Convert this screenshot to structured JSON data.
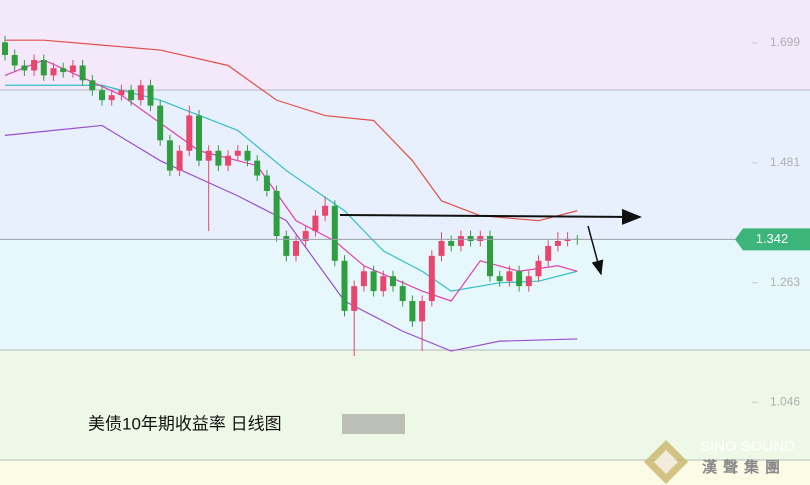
{
  "chart_data": {
    "type": "candlestick",
    "title": "美债10年期收益率  日线图",
    "watermark": {
      "en": "SINO SOUND",
      "zh": "漢聲集團"
    },
    "ylim": [
      0.941,
      1.777
    ],
    "yticks": [
      1.699,
      1.481,
      1.263,
      1.046
    ],
    "last_price": 1.342,
    "last_price_color": "#3bb57a",
    "up_color": "#e8466e",
    "down_color": "#2f9e3f",
    "open": [
      1.7,
      1.677,
      1.658,
      1.649,
      1.668,
      1.64,
      1.653,
      1.646,
      1.658,
      1.631,
      1.613,
      1.595,
      1.604,
      1.613,
      1.595,
      1.622,
      1.585,
      1.522,
      1.467,
      1.503,
      1.567,
      1.485,
      1.503,
      1.476,
      1.494,
      1.503,
      1.485,
      1.458,
      1.43,
      1.348,
      1.312,
      1.339,
      1.357,
      1.385,
      1.403,
      1.303,
      1.212,
      1.257,
      1.284,
      1.248,
      1.275,
      1.257,
      1.23,
      1.193,
      1.23,
      1.312,
      1.339,
      1.33,
      1.348,
      1.339,
      1.348,
      1.275,
      1.266,
      1.284,
      1.257,
      1.275,
      1.303,
      1.33,
      1.339,
      1.343
    ],
    "high": [
      1.712,
      1.687,
      1.668,
      1.678,
      1.678,
      1.663,
      1.663,
      1.668,
      1.668,
      1.641,
      1.623,
      1.614,
      1.623,
      1.623,
      1.632,
      1.632,
      1.595,
      1.532,
      1.513,
      1.585,
      1.577,
      1.513,
      1.513,
      1.504,
      1.513,
      1.513,
      1.495,
      1.468,
      1.44,
      1.358,
      1.349,
      1.367,
      1.395,
      1.42,
      1.413,
      1.313,
      1.267,
      1.294,
      1.294,
      1.285,
      1.285,
      1.267,
      1.24,
      1.24,
      1.322,
      1.355,
      1.349,
      1.358,
      1.358,
      1.358,
      1.358,
      1.285,
      1.294,
      1.294,
      1.285,
      1.313,
      1.34,
      1.355,
      1.355,
      1.35
    ],
    "low": [
      1.667,
      1.648,
      1.639,
      1.639,
      1.63,
      1.63,
      1.636,
      1.636,
      1.621,
      1.603,
      1.585,
      1.585,
      1.594,
      1.585,
      1.585,
      1.575,
      1.512,
      1.457,
      1.457,
      1.493,
      1.475,
      1.357,
      1.466,
      1.466,
      1.484,
      1.475,
      1.448,
      1.42,
      1.338,
      1.302,
      1.302,
      1.329,
      1.347,
      1.375,
      1.293,
      1.202,
      1.13,
      1.247,
      1.238,
      1.238,
      1.247,
      1.22,
      1.183,
      1.139,
      1.22,
      1.302,
      1.32,
      1.32,
      1.329,
      1.329,
      1.265,
      1.256,
      1.256,
      1.247,
      1.247,
      1.265,
      1.293,
      1.32,
      1.329,
      1.332
    ],
    "close": [
      1.677,
      1.658,
      1.649,
      1.668,
      1.64,
      1.653,
      1.646,
      1.658,
      1.631,
      1.613,
      1.595,
      1.604,
      1.613,
      1.595,
      1.622,
      1.585,
      1.522,
      1.467,
      1.503,
      1.567,
      1.485,
      1.503,
      1.476,
      1.494,
      1.503,
      1.485,
      1.458,
      1.43,
      1.348,
      1.312,
      1.339,
      1.357,
      1.385,
      1.403,
      1.303,
      1.212,
      1.257,
      1.284,
      1.248,
      1.275,
      1.257,
      1.23,
      1.193,
      1.23,
      1.312,
      1.339,
      1.33,
      1.348,
      1.339,
      1.348,
      1.275,
      1.266,
      1.284,
      1.257,
      1.275,
      1.303,
      1.33,
      1.339,
      1.343,
      1.342
    ],
    "lines": [
      {
        "color": "#e0504a",
        "x": [
          0,
          4,
          10,
          16,
          23,
          28,
          33,
          38,
          42,
          45,
          49,
          55,
          59
        ],
        "values": [
          1.704,
          1.704,
          1.695,
          1.686,
          1.658,
          1.595,
          1.567,
          1.558,
          1.485,
          1.412,
          1.385,
          1.376,
          1.394
        ]
      },
      {
        "color": "#30c0c8",
        "x": [
          0,
          10,
          16,
          24,
          29,
          35,
          39,
          43,
          46,
          51,
          55,
          59
        ],
        "values": [
          1.622,
          1.622,
          1.595,
          1.54,
          1.467,
          1.394,
          1.321,
          1.284,
          1.248,
          1.263,
          1.266,
          1.284
        ]
      },
      {
        "color": "#9a4fd0",
        "x": [
          0,
          10,
          16,
          24,
          29,
          35,
          41,
          46,
          51,
          59
        ],
        "values": [
          1.531,
          1.549,
          1.485,
          1.421,
          1.376,
          1.23,
          1.175,
          1.139,
          1.157,
          1.161
        ]
      },
      {
        "color": "#e040b0",
        "x": [
          0,
          4,
          12,
          20,
          26,
          30,
          34,
          37,
          43,
          46,
          49,
          53,
          57,
          59
        ],
        "values": [
          1.64,
          1.668,
          1.604,
          1.503,
          1.476,
          1.376,
          1.339,
          1.294,
          1.248,
          1.23,
          1.303,
          1.284,
          1.294,
          1.284
        ]
      }
    ]
  }
}
